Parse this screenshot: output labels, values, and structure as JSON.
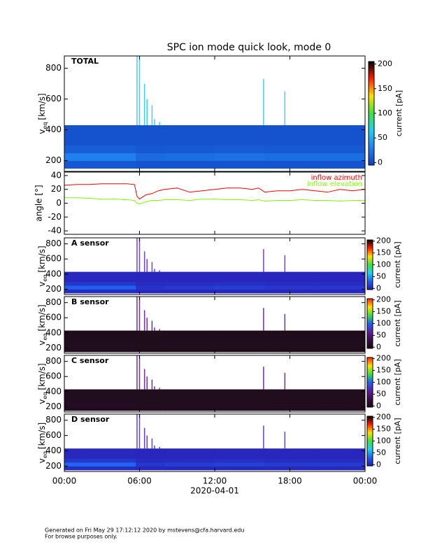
{
  "title": "SPC ion mode quick look, mode 0",
  "footer": [
    "Generated on Fri May 29 17:12:12 2020 by mstevens@cfa.harvard.edu",
    "For browse purposes only."
  ],
  "chart_data": [
    {
      "type": "spectrogram",
      "label": "TOTAL",
      "ylabel": {
        "main": "v",
        "sub": "eq",
        "unit": "[km/s]"
      },
      "xlim": [
        0,
        24
      ],
      "ylim": [
        130,
        880
      ],
      "yticks": [
        200,
        400,
        600,
        800
      ],
      "x_edges": [
        0,
        5.7,
        8,
        12,
        16,
        20,
        24
      ],
      "y_edges": [
        150,
        200,
        250,
        300,
        430
      ],
      "values": [
        [
          8,
          6,
          6,
          6,
          6,
          6
        ],
        [
          30,
          18,
          20,
          22,
          20,
          20
        ],
        [
          12,
          8,
          9,
          10,
          9,
          9
        ],
        [
          5,
          5,
          5,
          5,
          5,
          5
        ]
      ],
      "spikes": {
        "x": [
          5.8,
          6.0,
          6.4,
          6.6,
          7.0,
          7.2,
          7.6,
          15.9,
          17.6
        ],
        "values": [
          880,
          880,
          700,
          600,
          560,
          470,
          450,
          730,
          650
        ]
      },
      "spike_color": "#40d0f0",
      "colormap": [
        "#1040c0",
        "#2080f0",
        "#20d0f0",
        "#40e040",
        "#ffe000",
        "#ff2000",
        "#000000"
      ],
      "colorbar": {
        "label": "current [pA]",
        "lim": [
          -5,
          205
        ],
        "ticks": [
          0,
          50,
          100,
          150,
          200
        ]
      }
    },
    {
      "type": "line",
      "ylabel": "angle [°]",
      "xlim": [
        0,
        24
      ],
      "ylim": [
        -45,
        45
      ],
      "yticks": [
        -40,
        -20,
        0,
        20,
        40
      ],
      "x": [
        0,
        1,
        2,
        3,
        4,
        5,
        5.6,
        5.8,
        6,
        6.5,
        7,
        7.5,
        8,
        9,
        10,
        11,
        12,
        13,
        14,
        15,
        15.5,
        16,
        17,
        18,
        19,
        20,
        21,
        22,
        23,
        24
      ],
      "series": [
        {
          "name": "inflow azimuth",
          "color": "#ff0000",
          "values": [
            26,
            27,
            27,
            28,
            28,
            28,
            27,
            10,
            6,
            12,
            14,
            18,
            20,
            22,
            16,
            18,
            20,
            22,
            22,
            20,
            22,
            16,
            18,
            18,
            20,
            18,
            16,
            20,
            18,
            20
          ]
        },
        {
          "name": "inflow elevation",
          "color": "#7fff00",
          "values": [
            8,
            8,
            7,
            6,
            6,
            5,
            4,
            0,
            -1,
            2,
            4,
            4,
            5,
            5,
            4,
            6,
            6,
            5,
            5,
            4,
            5,
            3,
            4,
            4,
            5,
            4,
            4,
            3,
            4,
            4
          ]
        }
      ]
    },
    {
      "type": "spectrogram",
      "label": "A sensor",
      "ylabel": {
        "main": "v",
        "sub": "eq",
        "unit": "[km/s]"
      },
      "xlim": [
        0,
        24
      ],
      "ylim": [
        130,
        880
      ],
      "yticks": [
        200,
        400,
        600,
        800
      ],
      "x_edges": [
        0,
        5.7,
        8,
        12,
        16,
        20,
        24
      ],
      "y_edges": [
        150,
        200,
        250,
        300,
        430
      ],
      "values": [
        [
          5,
          3,
          3,
          3,
          3,
          3
        ],
        [
          30,
          8,
          12,
          14,
          10,
          10
        ],
        [
          10,
          4,
          5,
          6,
          5,
          5
        ],
        [
          3,
          2,
          2,
          2,
          2,
          2
        ]
      ],
      "spikes": {
        "x": [
          5.8,
          6.0,
          6.4,
          6.6,
          7.0,
          7.2,
          7.6,
          15.9,
          17.6
        ],
        "values": [
          880,
          880,
          700,
          600,
          560,
          470,
          450,
          730,
          650
        ]
      },
      "spike_color": "#7040e0",
      "colormap": [
        "#2a18b0",
        "#2060f0",
        "#20d0f0",
        "#40e040",
        "#ffe000",
        "#ff2000",
        "#000000"
      ],
      "colorbar": {
        "label": "current [pA]",
        "lim": [
          -5,
          205
        ],
        "ticks": [
          0,
          50,
          100,
          150,
          200
        ]
      }
    },
    {
      "type": "spectrogram",
      "label": "B sensor",
      "ylabel": {
        "main": "v",
        "sub": "eq",
        "unit": "[km/s]"
      },
      "xlim": [
        0,
        24
      ],
      "ylim": [
        130,
        880
      ],
      "yticks": [
        200,
        400,
        600,
        800
      ],
      "x_edges": [
        0,
        5.7,
        8,
        12,
        16,
        20,
        24
      ],
      "y_edges": [
        150,
        200,
        250,
        300,
        430
      ],
      "values": [
        [
          3,
          2,
          2,
          2,
          2,
          2
        ],
        [
          6,
          3,
          3,
          4,
          3,
          3
        ],
        [
          4,
          2,
          3,
          3,
          3,
          3
        ],
        [
          2,
          2,
          2,
          2,
          2,
          2
        ]
      ],
      "spikes": {
        "x": [
          5.8,
          6.0,
          6.4,
          6.6,
          7.0,
          7.2,
          7.6,
          15.9,
          17.6
        ],
        "values": [
          880,
          880,
          700,
          600,
          560,
          470,
          450,
          730,
          650
        ]
      },
      "spike_color": "#7030a0",
      "colormap": [
        "#180c10",
        "#3a1048",
        "#6020a0",
        "#2060f0",
        "#40e040",
        "#ffe000",
        "#ff2000"
      ],
      "colorbar": {
        "label": "current [pA]",
        "lim": [
          -5,
          205
        ],
        "ticks": [
          0,
          50,
          100,
          150,
          200
        ]
      }
    },
    {
      "type": "spectrogram",
      "label": "C sensor",
      "ylabel": {
        "main": "v",
        "sub": "eq",
        "unit": "[km/s]"
      },
      "xlim": [
        0,
        24
      ],
      "ylim": [
        130,
        880
      ],
      "yticks": [
        200,
        400,
        600,
        800
      ],
      "x_edges": [
        0,
        5.7,
        8,
        12,
        16,
        20,
        24
      ],
      "y_edges": [
        150,
        200,
        250,
        300,
        430
      ],
      "values": [
        [
          4,
          3,
          3,
          3,
          3,
          3
        ],
        [
          8,
          4,
          5,
          5,
          4,
          4
        ],
        [
          5,
          3,
          4,
          4,
          4,
          4
        ],
        [
          3,
          3,
          3,
          3,
          3,
          3
        ]
      ],
      "spikes": {
        "x": [
          5.8,
          6.0,
          6.4,
          6.6,
          7.0,
          7.2,
          7.6,
          15.9,
          17.6
        ],
        "values": [
          880,
          880,
          700,
          600,
          560,
          470,
          450,
          730,
          650
        ]
      },
      "spike_color": "#7030a0",
      "colormap": [
        "#180c10",
        "#3a1048",
        "#6020a0",
        "#2060f0",
        "#40e040",
        "#ffe000",
        "#ff2000"
      ],
      "colorbar": {
        "label": "current [pA]",
        "lim": [
          -5,
          205
        ],
        "ticks": [
          0,
          50,
          100,
          150,
          200
        ]
      }
    },
    {
      "type": "spectrogram",
      "label": "D sensor",
      "ylabel": {
        "main": "v",
        "sub": "eq",
        "unit": "[km/s]"
      },
      "xlim": [
        0,
        24
      ],
      "ylim": [
        130,
        880
      ],
      "yticks": [
        200,
        400,
        600,
        800
      ],
      "xticks": [
        {
          "value": 0,
          "label": "00:00"
        },
        {
          "value": 6,
          "label": "06:00"
        },
        {
          "value": 12,
          "label": "12:00"
        },
        {
          "value": 18,
          "label": "18:00"
        },
        {
          "value": 24,
          "label": "00:00"
        }
      ],
      "xlabel": "2020-04-01",
      "x_edges": [
        0,
        5.7,
        8,
        12,
        16,
        20,
        24
      ],
      "y_edges": [
        150,
        200,
        250,
        300,
        430
      ],
      "values": [
        [
          5,
          3,
          3,
          3,
          3,
          3
        ],
        [
          32,
          10,
          14,
          16,
          12,
          12
        ],
        [
          10,
          4,
          5,
          6,
          5,
          5
        ],
        [
          3,
          2,
          2,
          2,
          2,
          2
        ]
      ],
      "spikes": {
        "x": [
          5.8,
          6.0,
          6.4,
          6.6,
          7.0,
          7.2,
          7.6,
          15.9,
          17.6
        ],
        "values": [
          880,
          880,
          700,
          600,
          560,
          470,
          450,
          730,
          650
        ]
      },
      "spike_color": "#6040e0",
      "colormap": [
        "#2a18b0",
        "#2060f0",
        "#20d0f0",
        "#40e040",
        "#ffe000",
        "#ff2000",
        "#000000"
      ],
      "colorbar": {
        "label": "current [pA]",
        "lim": [
          -5,
          205
        ],
        "ticks": [
          0,
          50,
          100,
          150,
          200
        ]
      }
    }
  ]
}
